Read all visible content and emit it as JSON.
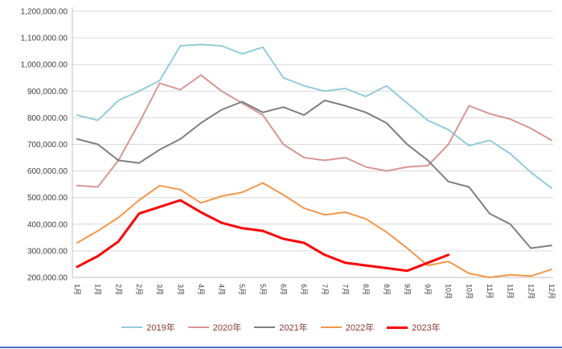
{
  "chart_data": {
    "type": "line",
    "title": "",
    "xlabel": "",
    "ylabel": "",
    "grid": "horizontal",
    "legend_position": "bottom",
    "ylim": [
      200000,
      1200000
    ],
    "ytick_step": 100000,
    "ytick_labels": [
      "200,000.00",
      "300,000.00",
      "400,000.00",
      "500,000.00",
      "600,000.00",
      "700,000.00",
      "800,000.00",
      "900,000.00",
      "1,000,000.00",
      "1,100,000.00",
      "1,200,000.00"
    ],
    "x_labels": [
      "1月",
      "1月",
      "2月",
      "2月",
      "3月",
      "3月",
      "4月",
      "4月",
      "5月",
      "5月",
      "6月",
      "6月",
      "7月",
      "7月",
      "8月",
      "8月",
      "9月",
      "9月",
      "10月",
      "10月",
      "11月",
      "11月",
      "12月",
      "12月"
    ],
    "series": [
      {
        "name": "2019年",
        "color": "#92CDDC",
        "width": 2,
        "values": [
          810000,
          790000,
          865000,
          900000,
          940000,
          1070000,
          1075000,
          1070000,
          1040000,
          1065000,
          950000,
          920000,
          900000,
          910000,
          880000,
          920000,
          855000,
          790000,
          755000,
          695000,
          715000,
          665000,
          595000,
          535000
        ]
      },
      {
        "name": "2020年",
        "color": "#D99694",
        "width": 2,
        "values": [
          545000,
          540000,
          640000,
          780000,
          930000,
          905000,
          960000,
          900000,
          855000,
          810000,
          700000,
          650000,
          640000,
          650000,
          615000,
          600000,
          615000,
          620000,
          700000,
          845000,
          815000,
          795000,
          760000,
          715000
        ]
      },
      {
        "name": "2021年",
        "color": "#7F7F7F",
        "width": 2,
        "values": [
          720000,
          700000,
          640000,
          630000,
          680000,
          720000,
          780000,
          830000,
          860000,
          820000,
          840000,
          810000,
          865000,
          845000,
          820000,
          780000,
          700000,
          640000,
          560000,
          540000,
          440000,
          400000,
          310000,
          320000
        ]
      },
      {
        "name": "2022年",
        "color": "#F79646",
        "width": 2,
        "values": [
          330000,
          375000,
          425000,
          490000,
          545000,
          530000,
          480000,
          505000,
          520000,
          555000,
          510000,
          460000,
          435000,
          445000,
          420000,
          370000,
          310000,
          245000,
          260000,
          215000,
          200000,
          210000,
          205000,
          230000
        ]
      },
      {
        "name": "2023年",
        "color": "#FF0000",
        "width": 3,
        "values": [
          240000,
          280000,
          335000,
          440000,
          465000,
          490000,
          445000,
          405000,
          385000,
          375000,
          345000,
          330000,
          285000,
          255000,
          245000,
          235000,
          225000,
          255000,
          285000,
          null,
          null,
          null,
          null,
          null
        ]
      }
    ]
  },
  "page": {
    "bottom_rule_color": "#4472C4"
  }
}
